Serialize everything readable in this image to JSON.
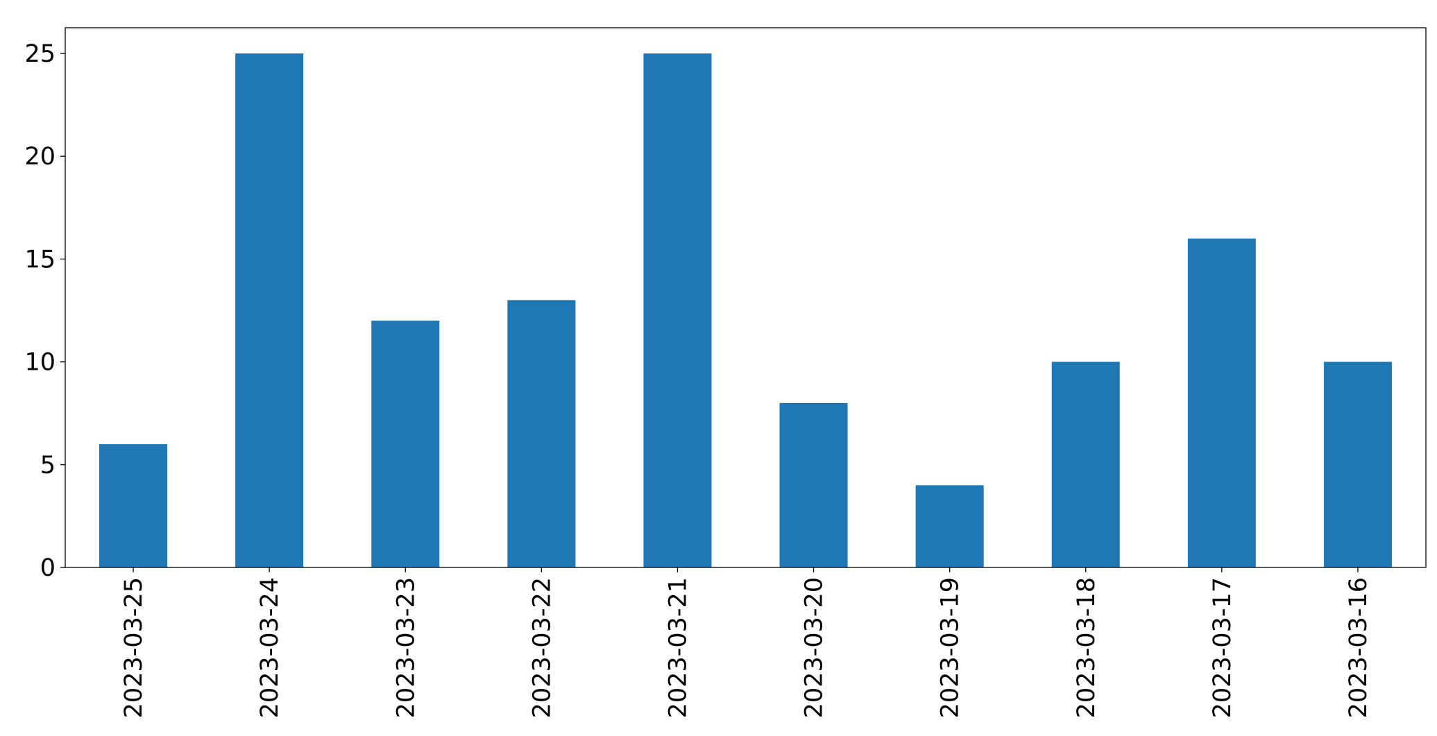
{
  "chart_data": {
    "type": "bar",
    "categories": [
      "2023-03-25",
      "2023-03-24",
      "2023-03-23",
      "2023-03-22",
      "2023-03-21",
      "2023-03-20",
      "2023-03-19",
      "2023-03-18",
      "2023-03-17",
      "2023-03-16"
    ],
    "values": [
      6,
      25,
      12,
      13,
      25,
      8,
      4,
      10,
      16,
      10
    ],
    "color": "#1f77b4",
    "ylim": [
      0,
      26.25
    ],
    "yticks": [
      0,
      5,
      10,
      15,
      20,
      25
    ],
    "grid": false
  }
}
